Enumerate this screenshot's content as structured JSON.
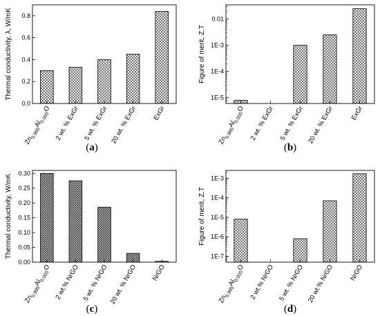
{
  "chart_data": [
    {
      "panel": "a",
      "type": "bar",
      "scale": "linear",
      "categories": [
        {
          "base": "Zn",
          "sub1": "0.995",
          "mid": "Al",
          "sub2": "0.005",
          "tail": "O"
        },
        {
          "text": "2 wt. % ExGr"
        },
        {
          "text": "5 wt. % ExGr"
        },
        {
          "text": "20 wt. % ExGr"
        },
        {
          "text": "ExGr"
        }
      ],
      "values": [
        0.3,
        0.33,
        0.4,
        0.45,
        0.84
      ],
      "ylabel": "Thermal conductivity, λ, W/mK",
      "ylim": [
        0,
        0.9
      ],
      "yticks": [
        0.0,
        0.2,
        0.4,
        0.6,
        0.8
      ],
      "ytick_labels": [
        "0.0",
        "0.2",
        "0.4",
        "0.6",
        "0.8"
      ],
      "grid": false,
      "legend": "none",
      "bar_pattern": "crosshatch"
    },
    {
      "panel": "b",
      "type": "bar",
      "scale": "log",
      "categories": [
        {
          "base": "Zn",
          "sub1": "0.995",
          "mid": "Al",
          "sub2": "0.005",
          "tail": "O"
        },
        {
          "text": "2 wt. % ExGr"
        },
        {
          "text": "5 wt. % ExGr"
        },
        {
          "text": "20 wt. % ExGr"
        },
        {
          "text": "ExGr"
        }
      ],
      "values": [
        8e-06,
        null,
        0.001,
        0.0025,
        0.025
      ],
      "ylabel": "Figure of merit, Z.T",
      "ylim": [
        6e-06,
        0.035
      ],
      "yticks": [
        1e-05,
        0.0001,
        0.001,
        0.01
      ],
      "ytick_labels": [
        "1E-5",
        "1E-4",
        "1E-3",
        "0.01"
      ],
      "grid": false,
      "legend": "none",
      "bar_pattern": "crosshatch"
    },
    {
      "panel": "c",
      "type": "bar",
      "scale": "linear",
      "categories": [
        {
          "base": "Zn",
          "sub1": "0.995",
          "mid": "Al",
          "sub2": "0.005",
          "tail": "O"
        },
        {
          "text": "2 wt.% NrGO"
        },
        {
          "text": "5 wt. % NrGO"
        },
        {
          "text": "20 wt. % NrGO"
        },
        {
          "text": "NrGO"
        }
      ],
      "values": [
        0.3,
        0.275,
        0.186,
        0.03,
        0.003
      ],
      "ylabel": "Thermal conductivity, W/mK",
      "ylim": [
        0,
        0.31
      ],
      "yticks": [
        0.0,
        0.05,
        0.1,
        0.15,
        0.2,
        0.25,
        0.3
      ],
      "ytick_labels": [
        "0.00",
        "0.05",
        "0.10",
        "0.15",
        "0.20",
        "0.25",
        "0.30"
      ],
      "grid": false,
      "legend": "none",
      "bar_pattern": "crosshatch-dense"
    },
    {
      "panel": "d",
      "type": "bar",
      "scale": "log",
      "categories": [
        {
          "base": "Zn",
          "sub1": "0.995",
          "mid": "Al",
          "sub2": "0.005",
          "tail": "O"
        },
        {
          "text": "2 wt.% NrGO"
        },
        {
          "text": "5 wt. % NrGO"
        },
        {
          "text": "20 wt.% NrGO"
        },
        {
          "text": "NrGO"
        }
      ],
      "values": [
        8e-06,
        null,
        8e-07,
        7e-05,
        0.0017
      ],
      "ylabel": "Figure of merit, Z.T",
      "ylim": [
        5e-08,
        0.0025
      ],
      "yticks": [
        1e-07,
        1e-06,
        1e-05,
        0.0001,
        0.001
      ],
      "ytick_labels": [
        "1E-7",
        "1E-6",
        "1E-5",
        "1E-4",
        "1E-3"
      ],
      "grid": false,
      "legend": "none",
      "bar_pattern": "crosshatch"
    }
  ],
  "panel_labels": [
    "(a)",
    "(b)",
    "(c)",
    "(d)"
  ]
}
